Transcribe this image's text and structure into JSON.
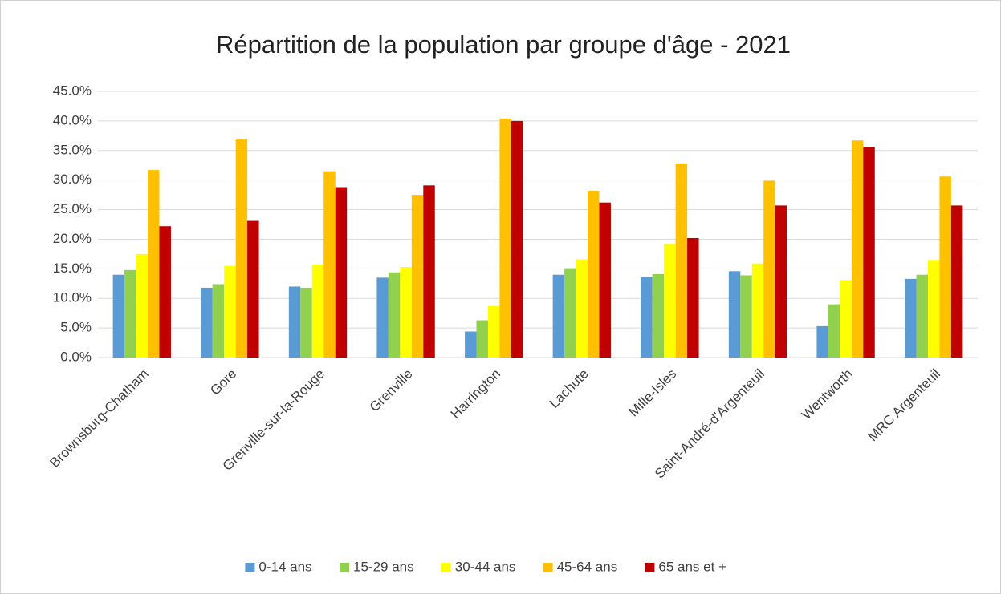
{
  "chart_data": {
    "type": "bar",
    "title": "Répartition de la population par groupe d'âge - 2021",
    "categories": [
      "Brownsburg-Chatham",
      "Gore",
      "Grenville-sur-la-Rouge",
      "Grenville",
      "Harrington",
      "Lachute",
      "Mille-Isles",
      "Saint-André-d'Argenteuil",
      "Wentworth",
      "MRC Argenteuil"
    ],
    "series": [
      {
        "name": "0-14 ans",
        "color": "#5b9bd5",
        "values": [
          14.0,
          11.8,
          12.0,
          13.5,
          4.4,
          14.0,
          13.7,
          14.6,
          5.3,
          13.3
        ]
      },
      {
        "name": "15-29 ans",
        "color": "#92d050",
        "values": [
          14.8,
          12.4,
          11.8,
          14.4,
          6.3,
          15.1,
          14.1,
          13.9,
          9.0,
          14.0
        ]
      },
      {
        "name": "30-44 ans",
        "color": "#ffff00",
        "values": [
          17.5,
          15.5,
          15.7,
          15.3,
          8.7,
          16.6,
          19.2,
          15.9,
          13.1,
          16.5
        ]
      },
      {
        "name": "45-64 ans",
        "color": "#ffc000",
        "values": [
          31.7,
          37.0,
          31.5,
          27.5,
          40.4,
          28.2,
          32.8,
          29.9,
          36.7,
          30.6
        ]
      },
      {
        "name": "65 ans et +",
        "color": "#c00000",
        "values": [
          22.2,
          23.1,
          28.8,
          29.1,
          40.0,
          26.2,
          20.2,
          25.7,
          35.6,
          25.7
        ]
      }
    ],
    "ylim": [
      0,
      45
    ],
    "yticks": [
      {
        "value": 0,
        "label": "0.0%"
      },
      {
        "value": 5,
        "label": "5.0%"
      },
      {
        "value": 10,
        "label": "10.0%"
      },
      {
        "value": 15,
        "label": "15.0%"
      },
      {
        "value": 20,
        "label": "20.0%"
      },
      {
        "value": 25,
        "label": "25.0%"
      },
      {
        "value": 30,
        "label": "30.0%"
      },
      {
        "value": 35,
        "label": "35.0%"
      },
      {
        "value": 40,
        "label": "40.0%"
      },
      {
        "value": 45,
        "label": "45.0%"
      }
    ],
    "grid": true,
    "legend": "bottom"
  }
}
